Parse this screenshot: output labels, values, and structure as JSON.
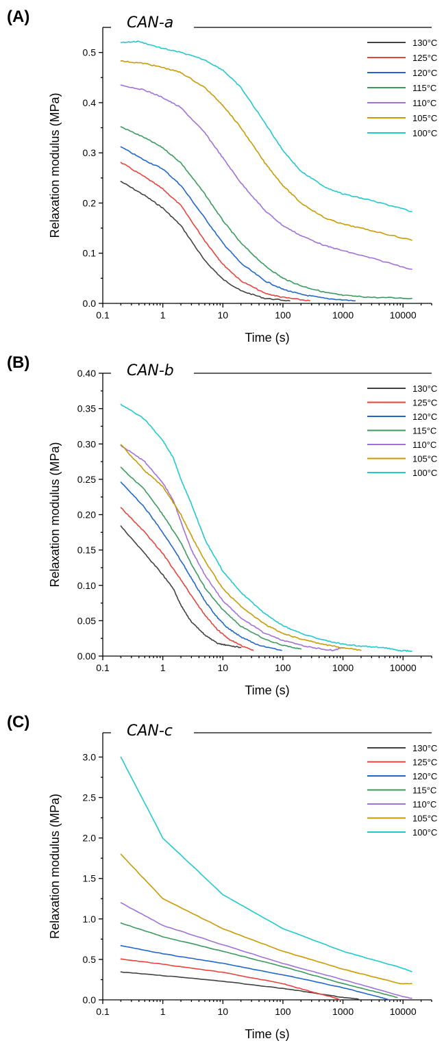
{
  "chart_data": [
    {
      "panel_label": "(A)",
      "type": "line",
      "title": "CAN-a",
      "xlabel": "Time (s)",
      "ylabel": "Relaxation modulus (MPa)",
      "xscale": "log",
      "xlim": [
        0.1,
        30000
      ],
      "ylim": [
        0,
        0.55
      ],
      "x_ticks": [
        0.1,
        1,
        10,
        100,
        1000,
        10000
      ],
      "x_tick_labels": [
        "0.1",
        "1",
        "10",
        "100",
        "1000",
        "10000"
      ],
      "y_ticks": [
        0,
        0.1,
        0.2,
        0.3,
        0.4,
        0.5
      ],
      "y_tick_labels": [
        "0.0",
        "0.1",
        "0.2",
        "0.3",
        "0.4",
        "0.5"
      ],
      "grid": false,
      "legend_position": "top-right",
      "series": [
        {
          "name": "130°C",
          "color": "#404040",
          "x": [
            0.2,
            0.5,
            1,
            2,
            5,
            10,
            20,
            50,
            130
          ],
          "y": [
            0.243,
            0.215,
            0.19,
            0.155,
            0.085,
            0.048,
            0.025,
            0.01,
            0.005
          ]
        },
        {
          "name": "125°C",
          "color": "#e8413c",
          "x": [
            0.2,
            0.5,
            1,
            2,
            5,
            10,
            20,
            50,
            100,
            280
          ],
          "y": [
            0.281,
            0.252,
            0.228,
            0.195,
            0.125,
            0.078,
            0.045,
            0.02,
            0.012,
            0.005
          ]
        },
        {
          "name": "120°C",
          "color": "#1f66cc",
          "x": [
            0.2,
            0.5,
            1,
            2,
            5,
            10,
            20,
            50,
            100,
            200,
            500,
            1600
          ],
          "y": [
            0.312,
            0.285,
            0.268,
            0.235,
            0.17,
            0.12,
            0.08,
            0.045,
            0.028,
            0.018,
            0.01,
            0.005
          ]
        },
        {
          "name": "115°C",
          "color": "#3a9a5c",
          "x": [
            0.2,
            0.5,
            1,
            2,
            5,
            10,
            20,
            50,
            100,
            200,
            500,
            1000,
            3000,
            14000
          ],
          "y": [
            0.352,
            0.33,
            0.31,
            0.28,
            0.218,
            0.165,
            0.12,
            0.075,
            0.05,
            0.035,
            0.022,
            0.016,
            0.012,
            0.01
          ]
        },
        {
          "name": "110°C",
          "color": "#a070d8",
          "x": [
            0.2,
            0.5,
            1,
            2,
            5,
            10,
            20,
            50,
            100,
            200,
            500,
            1000,
            3000,
            14000
          ],
          "y": [
            0.435,
            0.425,
            0.41,
            0.39,
            0.34,
            0.29,
            0.24,
            0.185,
            0.155,
            0.135,
            0.115,
            0.105,
            0.09,
            0.068
          ]
        },
        {
          "name": "105°C",
          "color": "#c99a00",
          "x": [
            0.2,
            0.5,
            1,
            2,
            5,
            10,
            20,
            50,
            100,
            200,
            500,
            1000,
            3000,
            14000
          ],
          "y": [
            0.483,
            0.478,
            0.47,
            0.46,
            0.43,
            0.395,
            0.35,
            0.28,
            0.235,
            0.2,
            0.17,
            0.158,
            0.145,
            0.126
          ]
        },
        {
          "name": "100°C",
          "color": "#1ec8d0",
          "x": [
            0.2,
            0.4,
            1,
            2,
            5,
            10,
            20,
            50,
            100,
            200,
            500,
            1000,
            3000,
            14000
          ],
          "y": [
            0.52,
            0.522,
            0.508,
            0.5,
            0.485,
            0.465,
            0.43,
            0.36,
            0.305,
            0.263,
            0.232,
            0.218,
            0.205,
            0.183
          ]
        }
      ]
    },
    {
      "panel_label": "(B)",
      "type": "line",
      "title": "CAN-b",
      "xlabel": "Time (s)",
      "ylabel": "Relaxation modulus (MPa)",
      "xscale": "log",
      "xlim": [
        0.1,
        30000
      ],
      "ylim": [
        0,
        0.4
      ],
      "x_ticks": [
        0.1,
        1,
        10,
        100,
        1000,
        10000
      ],
      "x_tick_labels": [
        "0.1",
        "1",
        "10",
        "100",
        "1000",
        "10000"
      ],
      "y_ticks": [
        0,
        0.05,
        0.1,
        0.15,
        0.2,
        0.25,
        0.3,
        0.35,
        0.4
      ],
      "y_tick_labels": [
        "0.00",
        "0.05",
        "0.10",
        "0.15",
        "0.20",
        "0.25",
        "0.30",
        "0.35",
        "0.40"
      ],
      "grid": false,
      "legend_position": "top-right",
      "series": [
        {
          "name": "130°C",
          "color": "#404040",
          "x": [
            0.2,
            0.5,
            1,
            1.5,
            2,
            3,
            5,
            8,
            12,
            20
          ],
          "y": [
            0.184,
            0.145,
            0.115,
            0.095,
            0.072,
            0.048,
            0.03,
            0.018,
            0.015,
            0.012
          ]
        },
        {
          "name": "125°C",
          "color": "#e8413c",
          "x": [
            0.2,
            0.5,
            1,
            2,
            3,
            5,
            8,
            12,
            20,
            32
          ],
          "y": [
            0.21,
            0.175,
            0.145,
            0.108,
            0.085,
            0.058,
            0.038,
            0.025,
            0.015,
            0.008
          ]
        },
        {
          "name": "120°C",
          "color": "#1f66cc",
          "x": [
            0.2,
            0.5,
            1,
            2,
            3,
            5,
            8,
            12,
            20,
            40,
            95
          ],
          "y": [
            0.246,
            0.21,
            0.175,
            0.135,
            0.11,
            0.078,
            0.055,
            0.04,
            0.027,
            0.015,
            0.008
          ]
        },
        {
          "name": "115°C",
          "color": "#3a9a5c",
          "x": [
            0.2,
            0.5,
            1,
            2,
            3,
            5,
            10,
            20,
            50,
            100,
            200
          ],
          "y": [
            0.267,
            0.235,
            0.2,
            0.16,
            0.13,
            0.097,
            0.065,
            0.042,
            0.024,
            0.015,
            0.01
          ]
        },
        {
          "name": "110°C",
          "color": "#a070d8",
          "x": [
            0.2,
            0.5,
            1,
            1.5,
            2,
            3,
            5,
            10,
            20,
            50,
            100,
            300,
            700,
            1000
          ],
          "y": [
            0.298,
            0.275,
            0.245,
            0.22,
            0.19,
            0.15,
            0.115,
            0.078,
            0.054,
            0.032,
            0.022,
            0.012,
            0.008,
            0.012
          ]
        },
        {
          "name": "105°C",
          "color": "#c99a00",
          "x": [
            0.2,
            0.5,
            1,
            2,
            3,
            5,
            10,
            20,
            50,
            100,
            200,
            500,
            1000,
            2000
          ],
          "y": [
            0.299,
            0.262,
            0.24,
            0.2,
            0.17,
            0.135,
            0.095,
            0.07,
            0.045,
            0.032,
            0.024,
            0.016,
            0.012,
            0.008
          ]
        },
        {
          "name": "100°C",
          "color": "#1ec8d0",
          "x": [
            0.2,
            0.5,
            1,
            1.5,
            2,
            3,
            5,
            10,
            20,
            50,
            100,
            200,
            500,
            1000,
            2000,
            5000,
            8000,
            14000
          ],
          "y": [
            0.356,
            0.335,
            0.305,
            0.28,
            0.25,
            0.215,
            0.165,
            0.12,
            0.09,
            0.06,
            0.043,
            0.032,
            0.022,
            0.017,
            0.014,
            0.012,
            0.008,
            0.007
          ]
        }
      ]
    },
    {
      "panel_label": "(C)",
      "type": "line",
      "title": "CAN-c",
      "xlabel": "Time (s)",
      "ylabel": "Relaxation modulus (MPa)",
      "xscale": "log",
      "xlim": [
        0.1,
        30000
      ],
      "ylim": [
        0,
        3.3
      ],
      "x_ticks": [
        0.1,
        1,
        10,
        100,
        1000,
        10000
      ],
      "x_tick_labels": [
        "0.1",
        "1",
        "10",
        "100",
        "1000",
        "10000"
      ],
      "y_ticks": [
        0,
        0.5,
        1,
        1.5,
        2,
        2.5,
        3
      ],
      "y_tick_labels": [
        "0.0",
        "0.5",
        "1.0",
        "1.5",
        "2.0",
        "2.5",
        "3.0"
      ],
      "grid": false,
      "legend_position": "top-right",
      "series": [
        {
          "name": "130°C",
          "color": "#404040",
          "x": [
            0.2,
            1,
            10,
            100,
            300,
            1000,
            1800
          ],
          "y": [
            0.345,
            0.3,
            0.23,
            0.14,
            0.09,
            0.03,
            0.01
          ]
        },
        {
          "name": "125°C",
          "color": "#e8413c",
          "x": [
            0.2,
            1,
            10,
            100,
            300,
            700,
            900
          ],
          "y": [
            0.505,
            0.44,
            0.34,
            0.2,
            0.1,
            0.03,
            0.0
          ]
        },
        {
          "name": "120°C",
          "color": "#1f66cc",
          "x": [
            0.2,
            1,
            10,
            100,
            1000,
            3000,
            6000
          ],
          "y": [
            0.67,
            0.57,
            0.45,
            0.31,
            0.15,
            0.06,
            0.0
          ]
        },
        {
          "name": "115°C",
          "color": "#3a9a5c",
          "x": [
            0.2,
            1,
            10,
            100,
            1000,
            5000,
            8000
          ],
          "y": [
            0.95,
            0.78,
            0.6,
            0.41,
            0.2,
            0.07,
            0.03
          ]
        },
        {
          "name": "110°C",
          "color": "#a070d8",
          "x": [
            0.2,
            1,
            10,
            100,
            1000,
            10000,
            14000
          ],
          "y": [
            1.2,
            0.92,
            0.68,
            0.45,
            0.25,
            0.04,
            0.02
          ]
        },
        {
          "name": "105°C",
          "color": "#c99a00",
          "x": [
            0.2,
            1,
            10,
            100,
            1000,
            9000,
            14000
          ],
          "y": [
            1.8,
            1.25,
            0.88,
            0.6,
            0.38,
            0.2,
            0.2
          ]
        },
        {
          "name": "100°C",
          "color": "#1ec8d0",
          "x": [
            0.2,
            1,
            10,
            100,
            1000,
            9000,
            14000
          ],
          "y": [
            3.0,
            2.0,
            1.3,
            0.88,
            0.6,
            0.4,
            0.35
          ]
        }
      ]
    }
  ]
}
